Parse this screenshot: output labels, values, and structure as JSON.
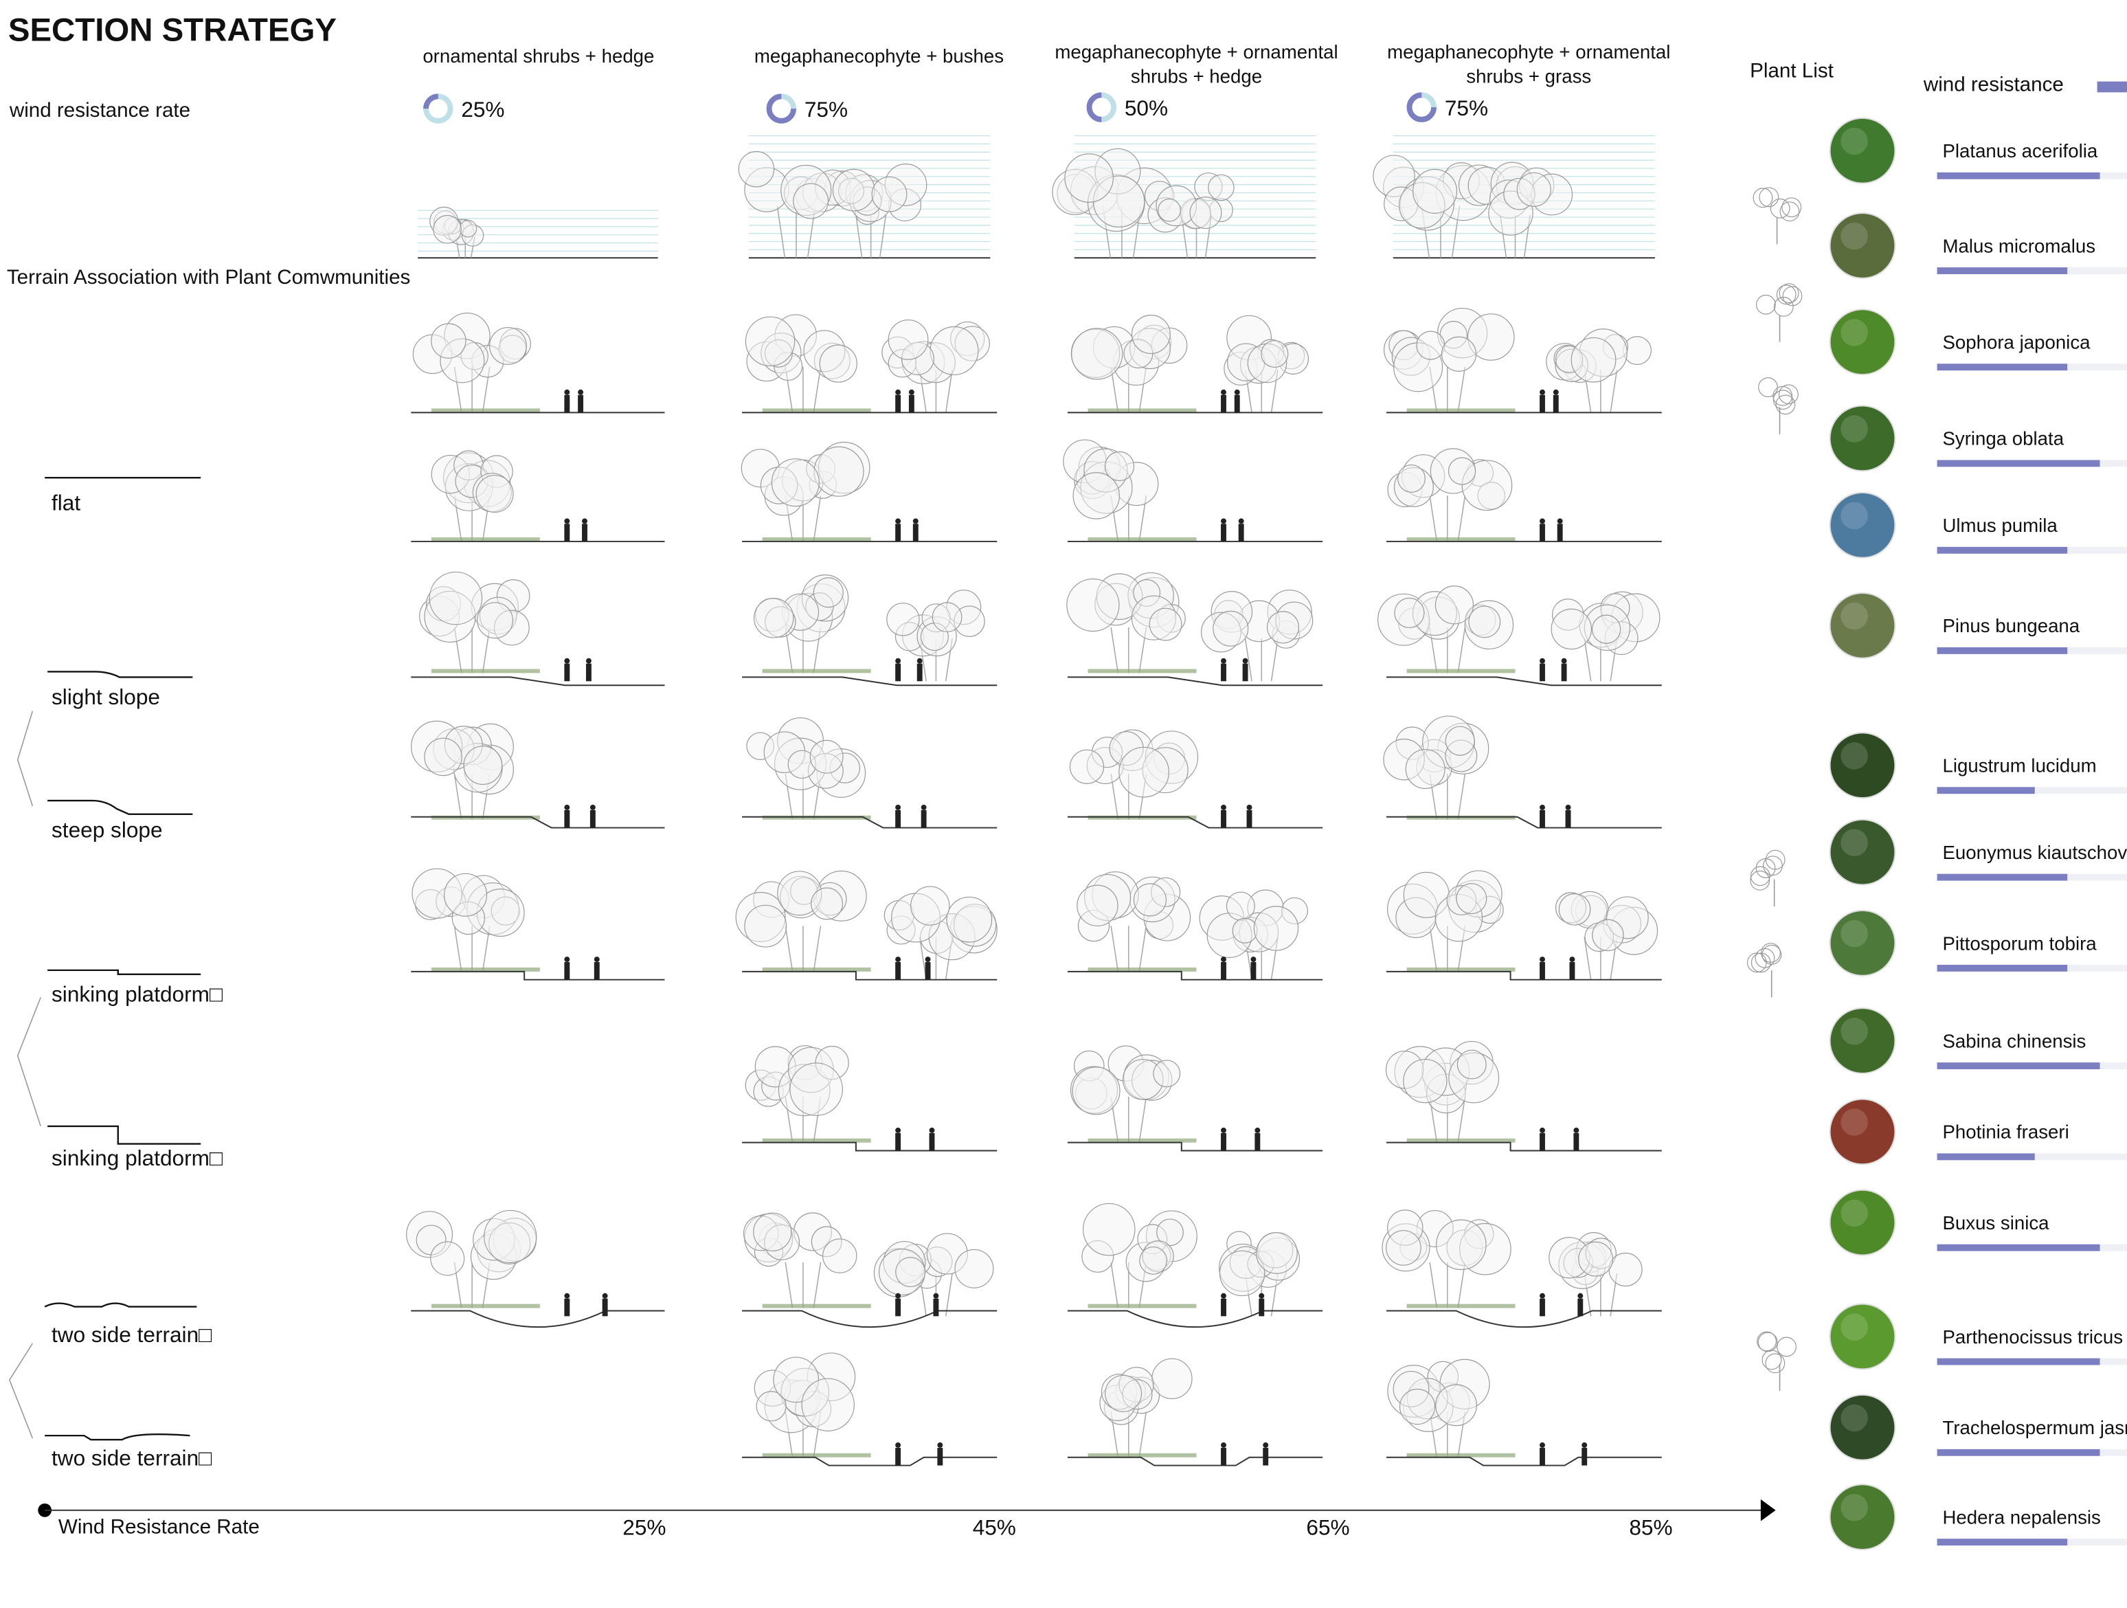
{
  "header": {
    "title": "SECTION STRATEGY",
    "rate_label": "wind resistance rate",
    "terrain_title": "Terrain Association with Plant Comwmunities"
  },
  "columns": [
    {
      "label": [
        "ornamental shrubs + hedge"
      ],
      "rate": "25%"
    },
    {
      "label": [
        "megaphanecophyte + bushes"
      ],
      "rate": "75%"
    },
    {
      "label": [
        "megaphanecophyte + ornamental",
        "shrubs + hedge"
      ],
      "rate": "50%"
    },
    {
      "label": [
        "megaphanecophyte + ornamental",
        "shrubs + grass"
      ],
      "rate": "75%"
    }
  ],
  "terrains": [
    "flat",
    "slight slope",
    "steep slope",
    "sinking platdorm□",
    "sinking platdorm□",
    "two side terrain□",
    "two side terrain□"
  ],
  "axis": {
    "label": "Wind Resistance Rate",
    "ticks": [
      "25%",
      "45%",
      "65%",
      "85%"
    ]
  },
  "plant_list": {
    "title": "Plant List",
    "legend": "wind resistance",
    "plants": [
      {
        "name": "Platanus acerifolia",
        "wind_resistance": 5
      },
      {
        "name": "Malus micromalus",
        "wind_resistance": 4
      },
      {
        "name": "Sophora japonica",
        "wind_resistance": 4
      },
      {
        "name": "Syringa oblata",
        "wind_resistance": 5
      },
      {
        "name": "Ulmus pumila",
        "wind_resistance": 4
      },
      {
        "name": "Pinus bungeana",
        "wind_resistance": 4
      },
      {
        "name": "Ligustrum lucidum",
        "wind_resistance": 3
      },
      {
        "name": "Euonymus kiautschov",
        "wind_resistance": 4
      },
      {
        "name": "Pittosporum tobira",
        "wind_resistance": 4
      },
      {
        "name": "Sabina chinensis",
        "wind_resistance": 5
      },
      {
        "name": "Photinia fraseri",
        "wind_resistance": 3
      },
      {
        "name": "Buxus sinica",
        "wind_resistance": 5
      },
      {
        "name": "Parthenocissus tricus",
        "wind_resistance": 5
      },
      {
        "name": "Trachelospermum jasm",
        "wind_resistance": 5
      },
      {
        "name": "Hedera nepalensis",
        "wind_resistance": 4
      }
    ]
  }
}
